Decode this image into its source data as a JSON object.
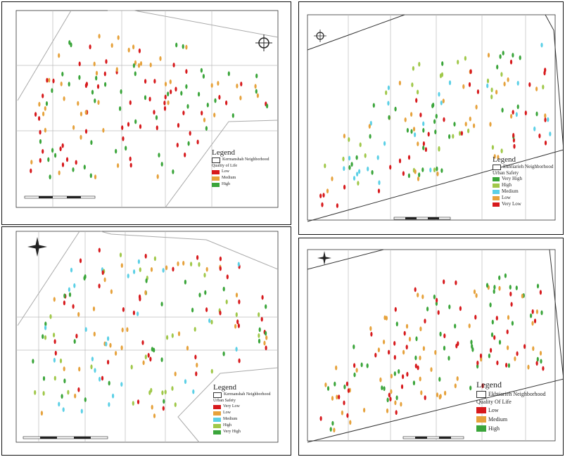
{
  "maps": [
    {
      "id": "top-left",
      "legend": {
        "title": "Legend",
        "boundary": "Kermanshah Neighborhood",
        "subtitle": "Quality of Life",
        "classes": [
          {
            "label": "Low",
            "color": "#d7191c"
          },
          {
            "label": "Medium",
            "color": "#e6a23c"
          },
          {
            "label": "High",
            "color": "#3aa53a"
          }
        ]
      }
    },
    {
      "id": "bottom-left",
      "legend": {
        "title": "Legend",
        "boundary": "Kermanshah Neighborhood",
        "subtitle": "Urban Safety",
        "classes": [
          {
            "label": "Very Low",
            "color": "#d7191c"
          },
          {
            "label": "Low",
            "color": "#e6a23c"
          },
          {
            "label": "Medium",
            "color": "#5bd0e6"
          },
          {
            "label": "High",
            "color": "#a0c84a"
          },
          {
            "label": "Very High",
            "color": "#3aa53a"
          }
        ]
      }
    },
    {
      "id": "top-right",
      "legend": {
        "title": "Legend",
        "boundary": "Ekhtiarieh Neighborhood",
        "subtitle": "Urban Safety",
        "classes": [
          {
            "label": "Very High",
            "color": "#3aa53a"
          },
          {
            "label": "High",
            "color": "#a0c84a"
          },
          {
            "label": "Medium",
            "color": "#5bd0e6"
          },
          {
            "label": "Low",
            "color": "#e6a23c"
          },
          {
            "label": "Very Low",
            "color": "#d7191c"
          }
        ]
      }
    },
    {
      "id": "bottom-right",
      "legend": {
        "title": "Legend",
        "boundary": "Ekhtiarieh Neighborhood",
        "subtitle": "Quality Of Life",
        "classes": [
          {
            "label": "Low",
            "color": "#d7191c"
          },
          {
            "label": "Medium",
            "color": "#e6a23c"
          },
          {
            "label": "High",
            "color": "#3aa53a"
          }
        ]
      }
    }
  ]
}
